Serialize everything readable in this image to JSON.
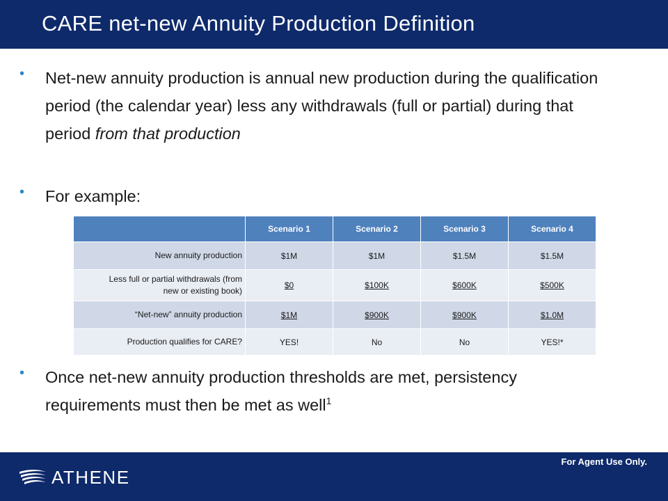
{
  "title": "CARE net-new Annuity Production Definition",
  "bullets": {
    "b1_text": "Net-new annuity production is annual new production during the qualification period (the calendar year) less any withdrawals (full or partial) during that period ",
    "b1_italic": "from that production",
    "b2_text": "For example:",
    "b3_text": "Once net-new annuity production thresholds are met, persistency requirements must then be met as well",
    "b3_sup": "1"
  },
  "table": {
    "headers": [
      "",
      "Scenario 1",
      "Scenario 2",
      "Scenario 3",
      "Scenario 4"
    ],
    "rows": [
      {
        "label": "New annuity production",
        "values": [
          "$1M",
          "$1M",
          "$1.5M",
          "$1.5M"
        ]
      },
      {
        "label": "Less full or partial withdrawals (from new or existing book)",
        "values": [
          "$0",
          "$100K",
          "$600K",
          "$500K"
        ]
      },
      {
        "label": "“Net-new” annuity production",
        "values": [
          "$1M",
          "$900K",
          "$900K",
          "$1.0M"
        ]
      },
      {
        "label": "Production qualifies for CARE?",
        "values": [
          "YES!",
          "No",
          "No",
          "YES!*"
        ]
      }
    ]
  },
  "footer": {
    "logo_text": "ATHENE",
    "agent_note": "For Agent Use Only."
  },
  "colors": {
    "brand_navy": "#0e2a6b",
    "table_header": "#4f81bd",
    "row_odd": "#d0d8e8",
    "row_even": "#e9edf4",
    "bullet": "#2b86c7"
  },
  "icons": [
    "athene-logo-icon"
  ]
}
